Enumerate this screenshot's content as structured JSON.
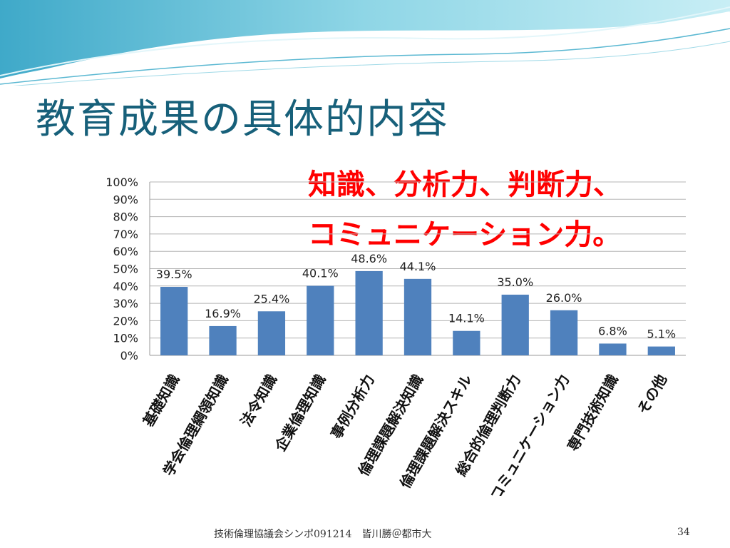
{
  "slide": {
    "title": "教育成果の具体的内容",
    "callout_lines": [
      "知識、分析力、判断力、",
      "コミュニケーション力。"
    ],
    "footer": "技術倫理協議会シンポ091214　皆川勝＠都市大",
    "page_number": "34"
  },
  "colors": {
    "title": "#17607a",
    "callout": "#ff0000",
    "bar": "#4f81bd"
  },
  "chart_data": {
    "type": "bar",
    "categories": [
      "基礎知識",
      "学会倫理綱領知識",
      "法令知識",
      "企業倫理知識",
      "事例分析力",
      "倫理課題解決知識",
      "倫理課題解決スキル",
      "総合的倫理判断力",
      "コミュニケーション力",
      "専門技術知識",
      "その他"
    ],
    "values": [
      39.5,
      16.9,
      25.4,
      40.1,
      48.6,
      44.1,
      14.1,
      35.0,
      26.0,
      6.8,
      5.1
    ],
    "value_labels": [
      "39.5%",
      "16.9%",
      "25.4%",
      "40.1%",
      "48.6%",
      "44.1%",
      "14.1%",
      "35.0%",
      "26.0%",
      "6.8%",
      "5.1%"
    ],
    "yticks": [
      "0%",
      "10%",
      "20%",
      "30%",
      "40%",
      "50%",
      "60%",
      "70%",
      "80%",
      "90%",
      "100%"
    ],
    "ylim": [
      0,
      100
    ],
    "grid": true,
    "legend": "none"
  }
}
